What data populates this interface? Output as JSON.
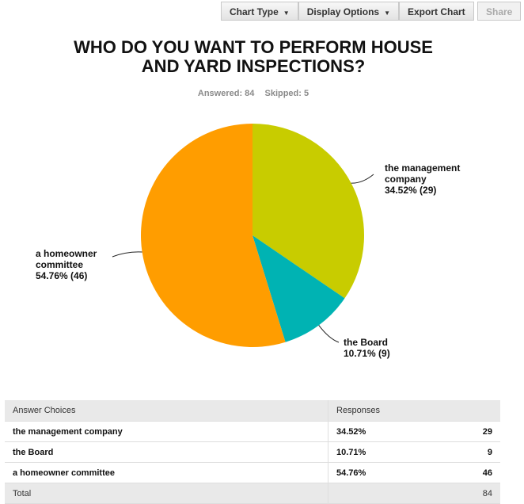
{
  "toolbar": {
    "chart_type": "Chart Type",
    "display_options": "Display Options",
    "export_chart": "Export Chart",
    "share": "Share"
  },
  "title_line1": "WHO DO YOU WANT TO PERFORM HOUSE",
  "title_line2": "AND YARD INSPECTIONS?",
  "stats": {
    "answered": "Answered: 84",
    "skipped": "Skipped: 5"
  },
  "chart_data": {
    "type": "pie",
    "title": "WHO DO YOU WANT TO PERFORM HOUSE AND YARD INSPECTIONS?",
    "slices": [
      {
        "label": "the management company",
        "label_lines": [
          "the management",
          "company"
        ],
        "percent": 34.52,
        "count": 29,
        "value_text": "34.52% (29)",
        "color": "#c8cc00"
      },
      {
        "label": "the Board",
        "label_lines": [
          "the Board"
        ],
        "percent": 10.71,
        "count": 9,
        "value_text": "10.71% (9)",
        "color": "#00b3b3"
      },
      {
        "label": "a homeowner committee",
        "label_lines": [
          "a homeowner",
          "committee"
        ],
        "percent": 54.76,
        "count": 46,
        "value_text": "54.76% (46)",
        "color": "#ff9d00"
      }
    ]
  },
  "table": {
    "headers": {
      "choice": "Answer Choices",
      "responses": "Responses"
    },
    "rows": [
      {
        "choice": "the management company",
        "percent": "34.52%",
        "count": "29"
      },
      {
        "choice": "the Board",
        "percent": "10.71%",
        "count": "9"
      },
      {
        "choice": "a homeowner committee",
        "percent": "54.76%",
        "count": "46"
      }
    ],
    "total_label": "Total",
    "total_value": "84"
  }
}
